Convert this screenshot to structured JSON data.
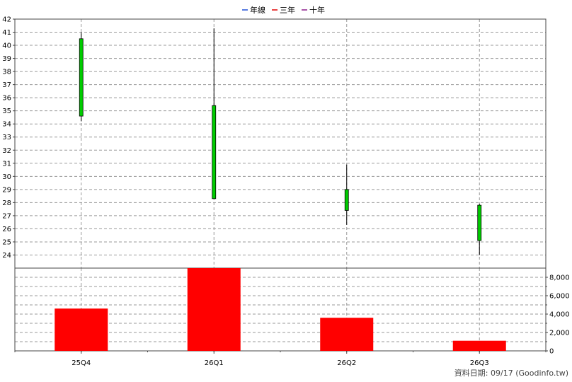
{
  "legend": {
    "items": [
      {
        "label": "年線",
        "color": "#1f4fd6"
      },
      {
        "label": "三年",
        "color": "#e00000"
      },
      {
        "label": "十年",
        "color": "#8a1a8a"
      }
    ]
  },
  "footer": {
    "text": "資料日期: 09/17  (Goodinfo.tw)"
  },
  "chart_data": {
    "type": "candlestick",
    "categories": [
      "25Q4",
      "26Q1",
      "26Q2",
      "26Q3"
    ],
    "price": {
      "ylim": [
        23,
        42
      ],
      "ticks": [
        24,
        25,
        26,
        27,
        28,
        29,
        30,
        31,
        32,
        33,
        34,
        35,
        36,
        37,
        38,
        39,
        40,
        41,
        42
      ],
      "candles": [
        {
          "open": 40.5,
          "close": 34.6,
          "high": 41.0,
          "low": 34.2
        },
        {
          "open": 35.4,
          "close": 28.3,
          "high": 41.3,
          "low": 28.3
        },
        {
          "open": 29.0,
          "close": 27.4,
          "high": 30.9,
          "low": 26.3
        },
        {
          "open": 27.8,
          "close": 25.1,
          "high": 27.9,
          "low": 24.0
        }
      ],
      "up_color": "#ff0000",
      "down_color": "#00cc00"
    },
    "volume": {
      "type": "bar",
      "ylim": [
        0,
        9000
      ],
      "ticks": [
        "0",
        "2,000",
        "4,000",
        "6,000",
        "8,000"
      ],
      "tick_values": [
        0,
        2000,
        4000,
        6000,
        8000
      ],
      "values": [
        4600,
        9200,
        3600,
        1100
      ],
      "color": "#ff0000"
    },
    "grid": true
  }
}
